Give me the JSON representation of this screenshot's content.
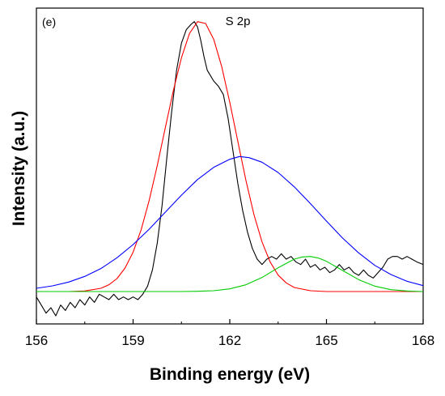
{
  "chart_data": {
    "type": "line",
    "panel_label": "(e)",
    "title": "S 2p",
    "xlabel": "Binding energy (eV)",
    "ylabel": "Intensity (a.u.)",
    "xlim": [
      156,
      168
    ],
    "ylim": [
      -0.12,
      1.05
    ],
    "x_ticks": [
      156,
      159,
      162,
      165,
      168
    ],
    "x_ticks_minor": [
      157.5,
      160.5,
      163.5,
      166.5
    ],
    "y_ticks": [],
    "grid": false,
    "legend": "none",
    "series": [
      {
        "color": "#000000",
        "x": [
          156.0,
          156.15,
          156.3,
          156.45,
          156.6,
          156.75,
          156.9,
          157.05,
          157.2,
          157.35,
          157.5,
          157.65,
          157.8,
          157.95,
          158.1,
          158.25,
          158.4,
          158.55,
          158.7,
          158.85,
          159.0,
          159.15,
          159.3,
          159.45,
          159.6,
          159.75,
          159.9,
          160.05,
          160.2,
          160.35,
          160.5,
          160.65,
          160.8,
          160.9,
          161.0,
          161.1,
          161.2,
          161.3,
          161.4,
          161.5,
          161.65,
          161.8,
          161.95,
          162.1,
          162.25,
          162.4,
          162.55,
          162.7,
          162.85,
          163.0,
          163.15,
          163.3,
          163.45,
          163.6,
          163.75,
          163.9,
          164.05,
          164.2,
          164.35,
          164.5,
          164.65,
          164.8,
          164.95,
          165.1,
          165.25,
          165.4,
          165.55,
          165.7,
          165.85,
          166.0,
          166.15,
          166.3,
          166.45,
          166.6,
          166.75,
          166.9,
          167.05,
          167.2,
          167.35,
          167.5,
          167.65,
          167.8,
          168.0
        ],
        "y": [
          -0.02,
          -0.05,
          -0.08,
          -0.06,
          -0.09,
          -0.05,
          -0.07,
          -0.04,
          -0.06,
          -0.03,
          -0.05,
          -0.02,
          -0.04,
          -0.01,
          -0.02,
          -0.03,
          -0.01,
          -0.03,
          -0.02,
          -0.03,
          -0.02,
          -0.03,
          -0.01,
          0.02,
          0.08,
          0.18,
          0.32,
          0.5,
          0.67,
          0.82,
          0.92,
          0.97,
          0.99,
          1.0,
          0.98,
          0.93,
          0.87,
          0.82,
          0.8,
          0.78,
          0.76,
          0.73,
          0.64,
          0.52,
          0.4,
          0.3,
          0.22,
          0.16,
          0.12,
          0.1,
          0.12,
          0.13,
          0.12,
          0.14,
          0.12,
          0.13,
          0.11,
          0.1,
          0.12,
          0.09,
          0.1,
          0.08,
          0.09,
          0.07,
          0.08,
          0.1,
          0.08,
          0.09,
          0.07,
          0.06,
          0.08,
          0.06,
          0.05,
          0.07,
          0.09,
          0.12,
          0.13,
          0.13,
          0.12,
          0.13,
          0.12,
          0.11,
          0.1
        ]
      },
      {
        "color": "#ff0000",
        "x": [
          156.0,
          156.5,
          157.0,
          157.5,
          158.0,
          158.25,
          158.5,
          158.75,
          159.0,
          159.25,
          159.5,
          159.75,
          160.0,
          160.25,
          160.5,
          160.75,
          161.0,
          161.25,
          161.5,
          161.75,
          162.0,
          162.25,
          162.5,
          162.75,
          163.0,
          163.25,
          163.5,
          163.75,
          164.0,
          164.5,
          165.0,
          165.5,
          166.0,
          167.0,
          168.0
        ],
        "y": [
          0.0,
          0.0,
          0.0,
          0.002,
          0.012,
          0.025,
          0.048,
          0.087,
          0.146,
          0.229,
          0.338,
          0.467,
          0.607,
          0.745,
          0.866,
          0.956,
          1.0,
          0.993,
          0.935,
          0.833,
          0.701,
          0.556,
          0.412,
          0.285,
          0.184,
          0.11,
          0.061,
          0.032,
          0.015,
          0.003,
          0.0,
          0.0,
          0.0,
          0.0,
          0.0
        ]
      },
      {
        "color": "#0000ff",
        "x": [
          156.0,
          156.5,
          157.0,
          157.5,
          158.0,
          158.5,
          159.0,
          159.5,
          160.0,
          160.5,
          161.0,
          161.5,
          162.0,
          162.3,
          162.6,
          163.0,
          163.5,
          164.0,
          164.5,
          165.0,
          165.5,
          166.0,
          166.5,
          167.0,
          167.5,
          168.0
        ],
        "y": [
          0.012,
          0.021,
          0.035,
          0.056,
          0.085,
          0.125,
          0.174,
          0.231,
          0.294,
          0.357,
          0.415,
          0.46,
          0.49,
          0.5,
          0.496,
          0.479,
          0.441,
          0.388,
          0.326,
          0.261,
          0.198,
          0.143,
          0.097,
          0.063,
          0.038,
          0.022
        ]
      },
      {
        "color": "#00cc00",
        "x": [
          156.0,
          157.0,
          158.0,
          159.0,
          160.0,
          160.5,
          161.0,
          161.5,
          162.0,
          162.5,
          163.0,
          163.5,
          164.0,
          164.25,
          164.5,
          164.75,
          165.0,
          165.5,
          166.0,
          166.5,
          167.0,
          167.5,
          168.0
        ],
        "y": [
          0.0,
          0.0,
          0.0,
          0.0,
          0.0,
          0.0,
          0.001,
          0.003,
          0.01,
          0.025,
          0.052,
          0.088,
          0.12,
          0.128,
          0.13,
          0.124,
          0.112,
          0.078,
          0.044,
          0.02,
          0.007,
          0.002,
          0.0
        ]
      }
    ]
  }
}
